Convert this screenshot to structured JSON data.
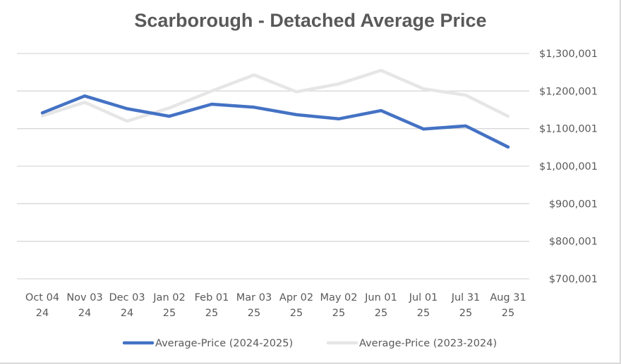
{
  "chart_data": {
    "type": "line",
    "title": "Scarborough - Detached Average Price",
    "xlabel": "",
    "ylabel": "",
    "categories": [
      [
        "Oct 04",
        "24"
      ],
      [
        "Nov 03",
        "24"
      ],
      [
        "Dec 03",
        "24"
      ],
      [
        "Jan 02",
        "25"
      ],
      [
        "Feb 01",
        "25"
      ],
      [
        "Mar 03",
        "25"
      ],
      [
        "Apr 02",
        "25"
      ],
      [
        "May 02",
        "25"
      ],
      [
        "Jun 01",
        "25"
      ],
      [
        "Jul 01",
        "25"
      ],
      [
        "Jul 31",
        "25"
      ],
      [
        "Aug 31",
        "25"
      ]
    ],
    "y_ticks": [
      700001,
      800001,
      900001,
      1000001,
      1100001,
      1200001,
      1300001
    ],
    "y_tick_labels": [
      "$700,001",
      "$800,001",
      "$900,001",
      "$1,000,001",
      "$1,100,001",
      "$1,200,001",
      "$1,300,001"
    ],
    "ylim": [
      700001,
      1300001
    ],
    "y_axis_side": "right",
    "grid": true,
    "legend_position": "bottom",
    "series": [
      {
        "name": "Average-Price (2024-2025)",
        "color": "#4472c4",
        "values": [
          1142000,
          1187000,
          1153000,
          1133000,
          1165000,
          1157000,
          1137000,
          1126000,
          1148000,
          1099000,
          1107000,
          1051000
        ]
      },
      {
        "name": "Average-Price (2023-2024)",
        "color": "#e7e6e6",
        "values": [
          1134000,
          1170000,
          1120000,
          1155000,
          1200000,
          1243000,
          1198000,
          1219000,
          1255000,
          1206000,
          1189000,
          1133000
        ]
      }
    ]
  }
}
